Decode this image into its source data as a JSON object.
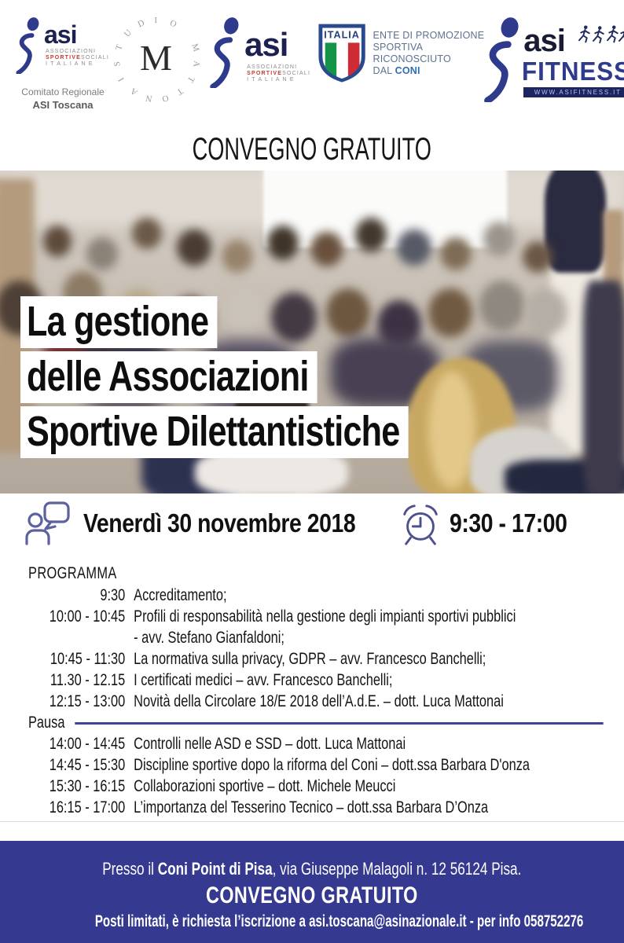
{
  "header": {
    "title": "CONVEGNO GRATUITO",
    "logos": {
      "asi_toscana": {
        "wordmark": "asi",
        "line1": "ASSOCIAZIONI",
        "line2a": "SPORTIVE",
        "line2b": "SOCIALI",
        "line3": "I T A L I A N E",
        "caption1": "Comitato Regionale",
        "caption2": "ASI Toscana"
      },
      "studio_mattonai": {
        "circle_text": "STUDIO MATTONAI",
        "monogram": "M"
      },
      "asi_nazionale": {
        "wordmark": "asi",
        "line1": "ASSOCIAZIONI",
        "line2a": "SPORTIVE",
        "line2b": "SOCIALI",
        "line3": "I T A L I A N E"
      },
      "coni": {
        "shield_label": "ITALIA",
        "line1": "ENTE DI PROMOZIONE",
        "line2": "SPORTIVA",
        "line3": "RICONOSCIUTO",
        "line4a": "DAL ",
        "line4b": "CONI"
      },
      "asi_fitness": {
        "wordmark": "asi",
        "name": "FITNESS",
        "website": "WWW.ASIFITNESS.IT"
      }
    }
  },
  "hero": {
    "line1": "La gestione",
    "line2": "delle Associazioni",
    "line3": "Sportive Dilettantistiche"
  },
  "event": {
    "date": "Venerdì 30 novembre 2018",
    "time": "9:30 - 17:00"
  },
  "program": {
    "heading": "PROGRAMMA",
    "pause_label": "Pausa",
    "items": [
      {
        "time": "9:30",
        "desc": "Accreditamento;"
      },
      {
        "time": "10:00 - 10:45",
        "desc": "Profili di responsabilità nella gestione degli impianti sportivi pubblici",
        "desc2": "- avv. Stefano Gianfaldoni;"
      },
      {
        "time": "10:45 - 11:30",
        "desc": "La normativa sulla privacy, GDPR – avv. Francesco Banchelli;"
      },
      {
        "time": "11.30 - 12.15",
        "desc": "I certificati medici – avv. Francesco Banchelli;"
      },
      {
        "time": "12:15 - 13:00",
        "desc": "Novità della Circolare 18/E 2018 dell’A.d.E. – dott. Luca Mattonai"
      },
      {
        "time": "14:00 - 14:45",
        "desc": "Controlli nelle ASD e SSD – dott. Luca Mattonai"
      },
      {
        "time": "14:45 - 15:30",
        "desc": "Discipline sportive dopo la riforma del Coni – dott.ssa Barbara D'onza"
      },
      {
        "time": "15:30 - 16:15",
        "desc": "Collaborazioni sportive – dott. Michele Meucci"
      },
      {
        "time": "16:15 - 17:00",
        "desc": "L’importanza del Tesserino Tecnico – dott.ssa Barbara D’Onza"
      }
    ]
  },
  "footer": {
    "line1_pre": "Presso il ",
    "line1_bold": "Coni Point di Pisa",
    "line1_post": ", via Giuseppe Malagoli n. 12 56124 Pisa.",
    "line2": "CONVEGNO GRATUITO",
    "line3": "Posti limitati, è richiesta l’iscrizione a asi.toscana@asinazionale.it - per info 058752276"
  },
  "colors": {
    "footer_bg": "#35398f",
    "accent_blue": "#2e3a8c",
    "icon_stroke": "#565a95",
    "pausa_line": "#3d4497",
    "flag_green": "#149447",
    "flag_red": "#ce2b37",
    "coni_text": "#5e7191",
    "coni_bold": "#2f6db5",
    "asi_red": "#c23b33"
  }
}
